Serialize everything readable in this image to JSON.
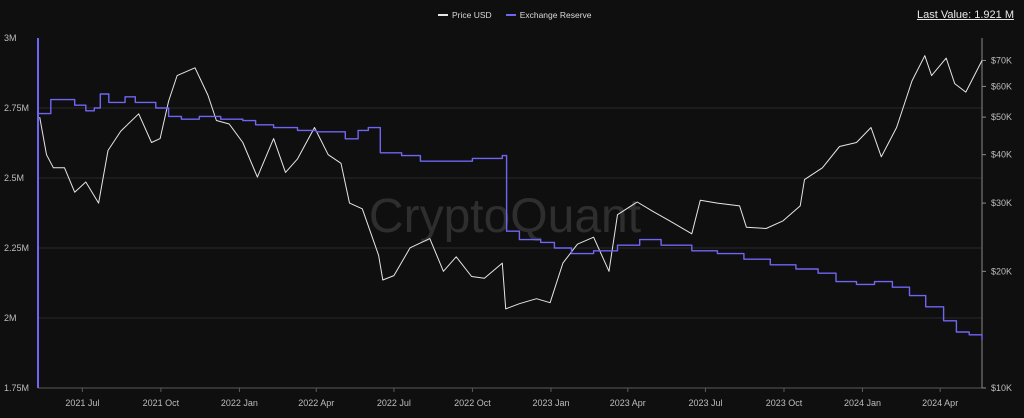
{
  "watermark": "CryptoQuant",
  "last_value_label": "Last Value: 1.921 M",
  "colors": {
    "background": "#0f0f10",
    "price": "#e6e6e6",
    "reserve": "#6f66f2",
    "grid": "#2a2a2c",
    "text": "#bdbdbd"
  },
  "chart_data": {
    "type": "line",
    "title": "",
    "legend_position": "top-center",
    "grid": true,
    "x_ticks": [
      "2021 Jul",
      "2021 Oct",
      "2022 Jan",
      "2022 Apr",
      "2022 Jul",
      "2022 Oct",
      "2023 Jan",
      "2023 Apr",
      "2023 Jul",
      "2023 Oct",
      "2024 Jan",
      "2024 Apr"
    ],
    "x_range": [
      "2021-05-10",
      "2024-05-20"
    ],
    "y_left": {
      "label": "",
      "range": [
        1750000,
        3000000
      ],
      "ticks": [
        1750000,
        2000000,
        2250000,
        2500000,
        2750000,
        3000000
      ],
      "tick_labels": [
        "1.75M",
        "2M",
        "2.25M",
        "2.5M",
        "2.75M",
        "3M"
      ]
    },
    "y_right": {
      "label": "",
      "scale": "log",
      "range": [
        10000,
        80000
      ],
      "ticks": [
        10000,
        20000,
        30000,
        40000,
        50000,
        60000,
        70000
      ],
      "tick_labels": [
        "$10K",
        "$20K",
        "$30K",
        "$40K",
        "$50K",
        "$60K",
        "$70K"
      ]
    },
    "series": [
      {
        "name": "Price USD",
        "axis": "right",
        "color": "#e6e6e6",
        "points": [
          [
            "2021-05-12",
            50000
          ],
          [
            "2021-05-20",
            40000
          ],
          [
            "2021-05-28",
            37000
          ],
          [
            "2021-06-10",
            37000
          ],
          [
            "2021-06-22",
            32000
          ],
          [
            "2021-07-05",
            34000
          ],
          [
            "2021-07-20",
            30000
          ],
          [
            "2021-07-31",
            41000
          ],
          [
            "2021-08-15",
            46000
          ],
          [
            "2021-09-05",
            51000
          ],
          [
            "2021-09-20",
            43000
          ],
          [
            "2021-09-30",
            44000
          ],
          [
            "2021-10-10",
            55000
          ],
          [
            "2021-10-20",
            64000
          ],
          [
            "2021-11-10",
            67000
          ],
          [
            "2021-11-25",
            57000
          ],
          [
            "2021-12-05",
            49000
          ],
          [
            "2021-12-20",
            48000
          ],
          [
            "2022-01-05",
            43000
          ],
          [
            "2022-01-22",
            35000
          ],
          [
            "2022-02-10",
            44000
          ],
          [
            "2022-02-24",
            36000
          ],
          [
            "2022-03-10",
            39000
          ],
          [
            "2022-03-30",
            47000
          ],
          [
            "2022-04-15",
            40000
          ],
          [
            "2022-04-30",
            38000
          ],
          [
            "2022-05-10",
            30000
          ],
          [
            "2022-05-25",
            29000
          ],
          [
            "2022-06-13",
            22000
          ],
          [
            "2022-06-18",
            19000
          ],
          [
            "2022-07-01",
            19500
          ],
          [
            "2022-07-20",
            23000
          ],
          [
            "2022-08-12",
            24300
          ],
          [
            "2022-08-28",
            20000
          ],
          [
            "2022-09-12",
            21800
          ],
          [
            "2022-09-30",
            19400
          ],
          [
            "2022-10-15",
            19200
          ],
          [
            "2022-11-05",
            21000
          ],
          [
            "2022-11-09",
            16000
          ],
          [
            "2022-11-25",
            16500
          ],
          [
            "2022-12-15",
            17000
          ],
          [
            "2022-12-31",
            16600
          ],
          [
            "2023-01-15",
            21000
          ],
          [
            "2023-02-01",
            23500
          ],
          [
            "2023-02-20",
            24500
          ],
          [
            "2023-03-10",
            20000
          ],
          [
            "2023-03-20",
            28000
          ],
          [
            "2023-04-12",
            30200
          ],
          [
            "2023-05-01",
            28500
          ],
          [
            "2023-05-20",
            27000
          ],
          [
            "2023-06-15",
            25000
          ],
          [
            "2023-06-25",
            30500
          ],
          [
            "2023-07-15",
            30000
          ],
          [
            "2023-08-10",
            29500
          ],
          [
            "2023-08-18",
            26000
          ],
          [
            "2023-09-10",
            25800
          ],
          [
            "2023-09-30",
            27000
          ],
          [
            "2023-10-20",
            29500
          ],
          [
            "2023-10-25",
            34500
          ],
          [
            "2023-11-15",
            37000
          ],
          [
            "2023-12-05",
            42000
          ],
          [
            "2023-12-25",
            43000
          ],
          [
            "2024-01-11",
            47000
          ],
          [
            "2024-01-23",
            39500
          ],
          [
            "2024-02-10",
            47000
          ],
          [
            "2024-02-28",
            62000
          ],
          [
            "2024-03-14",
            72000
          ],
          [
            "2024-03-22",
            64000
          ],
          [
            "2024-04-08",
            71000
          ],
          [
            "2024-04-18",
            61000
          ],
          [
            "2024-05-01",
            58000
          ],
          [
            "2024-05-20",
            70000
          ]
        ]
      },
      {
        "name": "Exchange Reserve",
        "axis": "left",
        "color": "#6f66f2",
        "points": [
          [
            "2021-05-10",
            2730000
          ],
          [
            "2021-05-25",
            2780000
          ],
          [
            "2021-06-10",
            2780000
          ],
          [
            "2021-06-22",
            2760000
          ],
          [
            "2021-07-05",
            2740000
          ],
          [
            "2021-07-15",
            2750000
          ],
          [
            "2021-07-22",
            2800000
          ],
          [
            "2021-08-01",
            2770000
          ],
          [
            "2021-08-20",
            2790000
          ],
          [
            "2021-09-01",
            2770000
          ],
          [
            "2021-09-25",
            2750000
          ],
          [
            "2021-10-10",
            2720000
          ],
          [
            "2021-10-25",
            2710000
          ],
          [
            "2021-11-15",
            2720000
          ],
          [
            "2021-12-10",
            2710000
          ],
          [
            "2022-01-05",
            2705000
          ],
          [
            "2022-01-20",
            2690000
          ],
          [
            "2022-02-10",
            2680000
          ],
          [
            "2022-03-10",
            2670000
          ],
          [
            "2022-04-01",
            2665000
          ],
          [
            "2022-04-20",
            2665000
          ],
          [
            "2022-05-05",
            2640000
          ],
          [
            "2022-05-20",
            2670000
          ],
          [
            "2022-06-01",
            2680000
          ],
          [
            "2022-06-10",
            2680000
          ],
          [
            "2022-06-15",
            2590000
          ],
          [
            "2022-07-10",
            2580000
          ],
          [
            "2022-08-01",
            2560000
          ],
          [
            "2022-09-01",
            2560000
          ],
          [
            "2022-10-01",
            2570000
          ],
          [
            "2022-11-05",
            2580000
          ],
          [
            "2022-11-10",
            2310000
          ],
          [
            "2022-11-25",
            2280000
          ],
          [
            "2022-12-20",
            2270000
          ],
          [
            "2023-01-05",
            2250000
          ],
          [
            "2023-01-25",
            2230000
          ],
          [
            "2023-02-20",
            2240000
          ],
          [
            "2023-03-20",
            2260000
          ],
          [
            "2023-04-15",
            2280000
          ],
          [
            "2023-05-10",
            2260000
          ],
          [
            "2023-06-15",
            2240000
          ],
          [
            "2023-07-15",
            2230000
          ],
          [
            "2023-08-15",
            2210000
          ],
          [
            "2023-09-15",
            2190000
          ],
          [
            "2023-10-15",
            2175000
          ],
          [
            "2023-11-10",
            2160000
          ],
          [
            "2023-12-01",
            2130000
          ],
          [
            "2023-12-25",
            2120000
          ],
          [
            "2024-01-15",
            2130000
          ],
          [
            "2024-02-05",
            2110000
          ],
          [
            "2024-02-25",
            2080000
          ],
          [
            "2024-03-15",
            2040000
          ],
          [
            "2024-04-05",
            1990000
          ],
          [
            "2024-04-20",
            1950000
          ],
          [
            "2024-05-05",
            1940000
          ],
          [
            "2024-05-20",
            1921000
          ]
        ]
      }
    ]
  }
}
